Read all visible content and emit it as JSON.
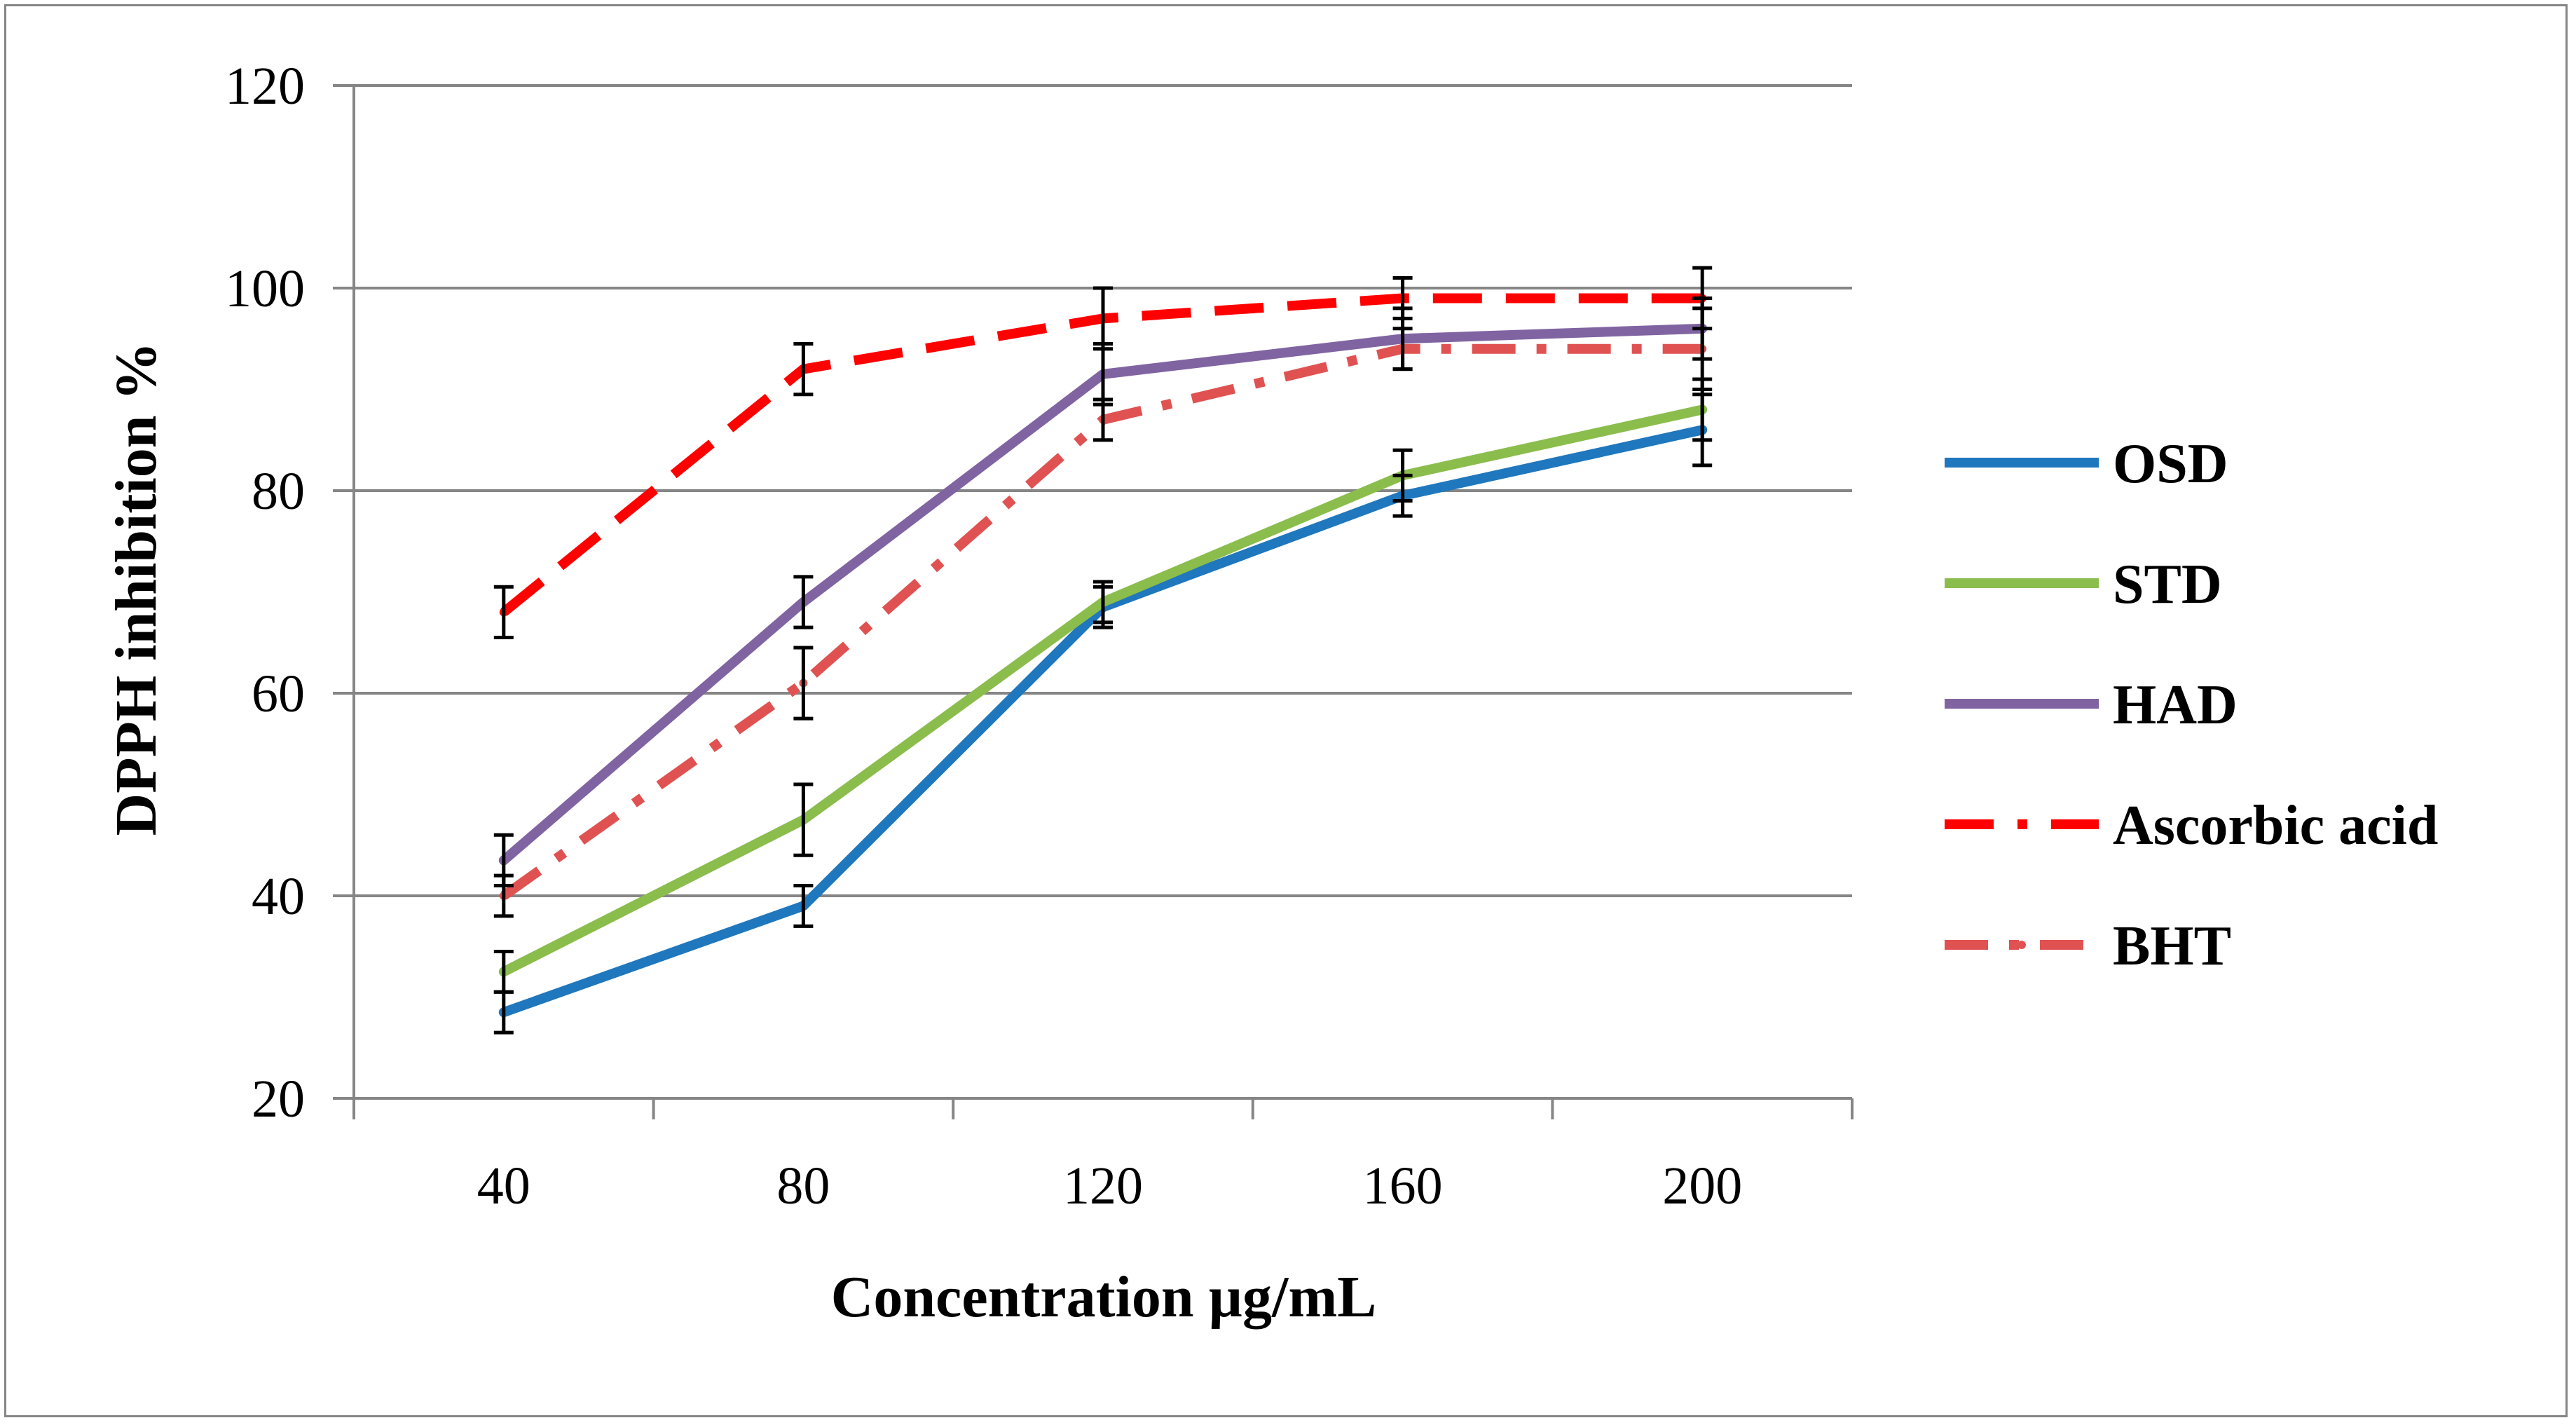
{
  "chart_data": {
    "type": "line",
    "title": "",
    "xlabel": "Concentration µg/mL",
    "ylabel": "DPPH inhibition %",
    "categories": [
      "40",
      "80",
      "120",
      "160",
      "200"
    ],
    "ylim": [
      20,
      120
    ],
    "yticks": [
      20,
      40,
      60,
      80,
      100,
      120
    ],
    "grid": true,
    "legend_position": "right",
    "series": [
      {
        "name": "OSD",
        "color": "#1F77BD",
        "style": "solid",
        "values": [
          28.5,
          39,
          68.5,
          79.5,
          86
        ],
        "errors": [
          2,
          2,
          2,
          2,
          3.5
        ]
      },
      {
        "name": "STD",
        "color": "#8BBD4D",
        "style": "solid",
        "values": [
          32.5,
          47.5,
          69,
          81.5,
          88
        ],
        "errors": [
          2,
          3.5,
          2,
          2.5,
          3
        ]
      },
      {
        "name": "HAD",
        "color": "#8064A2",
        "style": "solid",
        "values": [
          43.5,
          69,
          91.5,
          95,
          96
        ],
        "errors": [
          2.5,
          2.5,
          3,
          3,
          3
        ]
      },
      {
        "name": "Ascorbic acid",
        "color": "#FF0000",
        "style": "dashed",
        "values": [
          68,
          92,
          97,
          99,
          99
        ],
        "errors": [
          2.5,
          2.5,
          3,
          2,
          3
        ]
      },
      {
        "name": "BHT",
        "color": "#E05252",
        "style": "dashdot",
        "values": [
          40,
          61,
          87,
          94,
          94
        ],
        "errors": [
          2,
          3.5,
          2,
          2,
          4
        ]
      }
    ]
  }
}
